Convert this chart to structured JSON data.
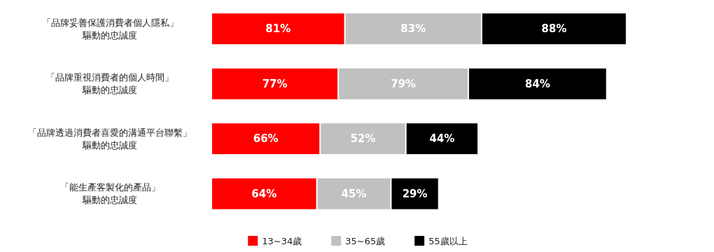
{
  "chart_data": {
    "type": "bar",
    "orientation": "horizontal",
    "stacked": true,
    "legend": "bottom",
    "categories": [
      "「品牌妥善保護消費者個人隱私」驅動的忠誠度",
      "「品牌重視消費者的個人時間」驅動的忠誠度",
      "「品牌透過消費者喜愛的溝通平台聯繫」驅動的忠誠度",
      "「能生產客製化的產品」驅動的忠誠度"
    ],
    "series": [
      {
        "name": "13~34歲",
        "color": "#ff0000",
        "values": [
          81,
          77,
          66,
          64
        ],
        "value_labels": [
          "81%",
          "77%",
          "66%",
          "64%"
        ]
      },
      {
        "name": "35~65歲",
        "color": "#c0c0c0",
        "values": [
          83,
          79,
          52,
          45
        ],
        "value_labels": [
          "83%",
          "79%",
          "52%",
          "45%"
        ]
      },
      {
        "name": "55歲以上",
        "color": "#000000",
        "values": [
          88,
          84,
          44,
          29
        ],
        "value_labels": [
          "88%",
          "84%",
          "44%",
          "29%"
        ]
      }
    ]
  }
}
